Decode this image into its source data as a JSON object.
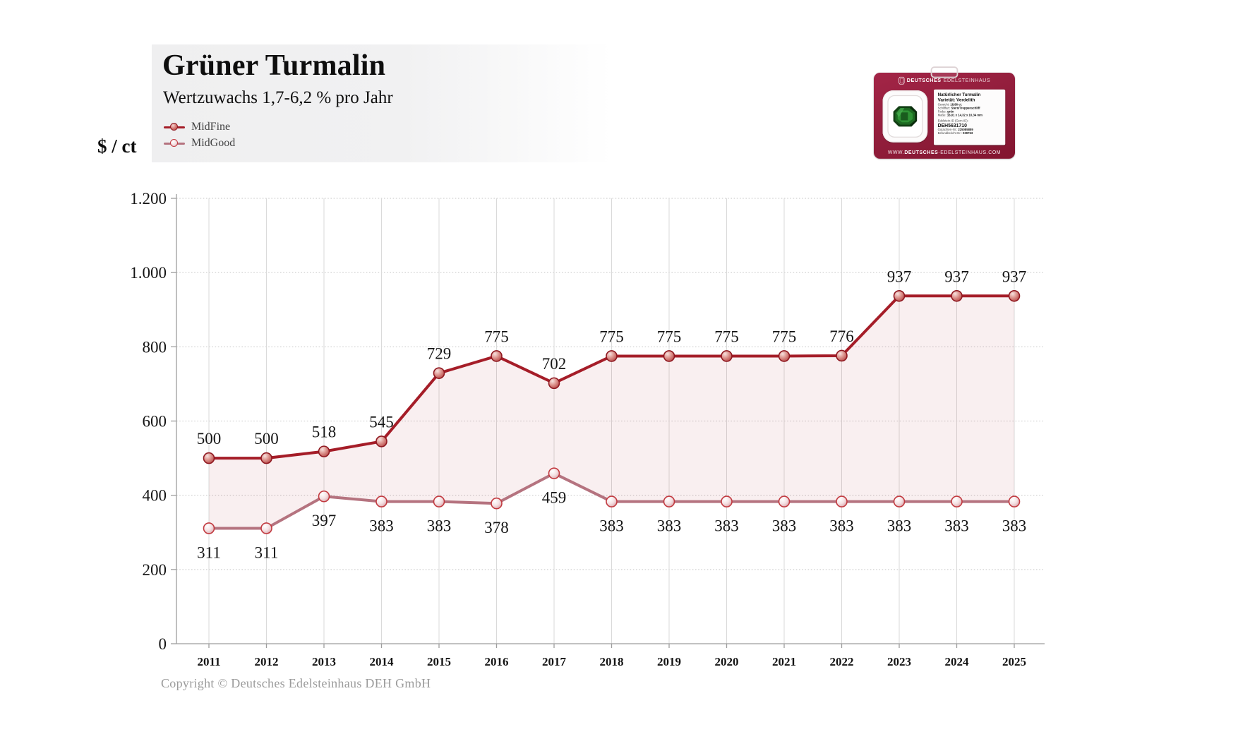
{
  "header": {
    "title": "Grüner Turmalin",
    "subtitle": "Wertzuwachs 1,7-6,2 % pro Jahr"
  },
  "axis": {
    "unit_label": "$ / ct"
  },
  "legend": {
    "items": [
      {
        "label": "MidFine"
      },
      {
        "label": "MidGood"
      }
    ]
  },
  "footer": {
    "copyright": "Copyright © Deutsches Edelsteinhaus DEH GmbH"
  },
  "badge": {
    "brand_bold": "DEUTSCHES",
    "brand_light": "EDELSTEINHAUS",
    "label": {
      "title": "Natürlicher Turmalin",
      "variety": "Varietät: Verdelith",
      "weight_key": "Gewicht:",
      "weight_value": "18,86 ct.",
      "cut_key": "Schliffart:",
      "cut_value": "Stern/Treppenschliff",
      "color_key": "Farbe:",
      "color_value": "grün",
      "dimensions_key": "Maße:",
      "dimensions_value": "16,01 x 14,32 x 10,34 mm",
      "gem_id_key": "Edelstein-ID (Gem-ID):",
      "gem_id_value": "DEH5631710",
      "certificate_key": "Gutachten-Nr.:",
      "certificate_value": "225085889",
      "report_key": "Befundbericht-Nr.:",
      "report_value": "039763"
    },
    "website_prefix": "WWW.",
    "website_bold": "DEUTSCHES",
    "website_rest": "-EDELSTEINHAUS.COM"
  },
  "chart_data": {
    "type": "line",
    "title": "Grüner Turmalin",
    "subtitle": "Wertzuwachs 1,7-6,2 % pro Jahr",
    "xlabel": "",
    "ylabel": "$ / ct",
    "ylim": [
      0,
      1200
    ],
    "yticks": [
      {
        "value": 0,
        "label": "0"
      },
      {
        "value": 200,
        "label": "200"
      },
      {
        "value": 400,
        "label": "400"
      },
      {
        "value": 600,
        "label": "600"
      },
      {
        "value": 800,
        "label": "800"
      },
      {
        "value": 1000,
        "label": "1.000"
      },
      {
        "value": 1200,
        "label": "1.200"
      }
    ],
    "categories": [
      "2011",
      "2012",
      "2013",
      "2014",
      "2015",
      "2016",
      "2017",
      "2018",
      "2019",
      "2020",
      "2021",
      "2022",
      "2023",
      "2024",
      "2025"
    ],
    "series": [
      {
        "name": "MidFine",
        "color": "#a51d28",
        "marker_stroke": "#8f1820",
        "label_position": "above",
        "values": [
          500,
          500,
          518,
          545,
          729,
          775,
          702,
          775,
          775,
          775,
          775,
          776,
          937,
          937,
          937
        ]
      },
      {
        "name": "MidGood",
        "color": "#b5737f",
        "marker_stroke": "#c23a40",
        "label_position": "below",
        "values": [
          311,
          311,
          397,
          383,
          383,
          378,
          459,
          383,
          383,
          383,
          383,
          383,
          383,
          383,
          383
        ]
      }
    ],
    "area_fill": "rgba(165,29,42,0.07)",
    "grid": true,
    "legend_position": "top-left"
  }
}
